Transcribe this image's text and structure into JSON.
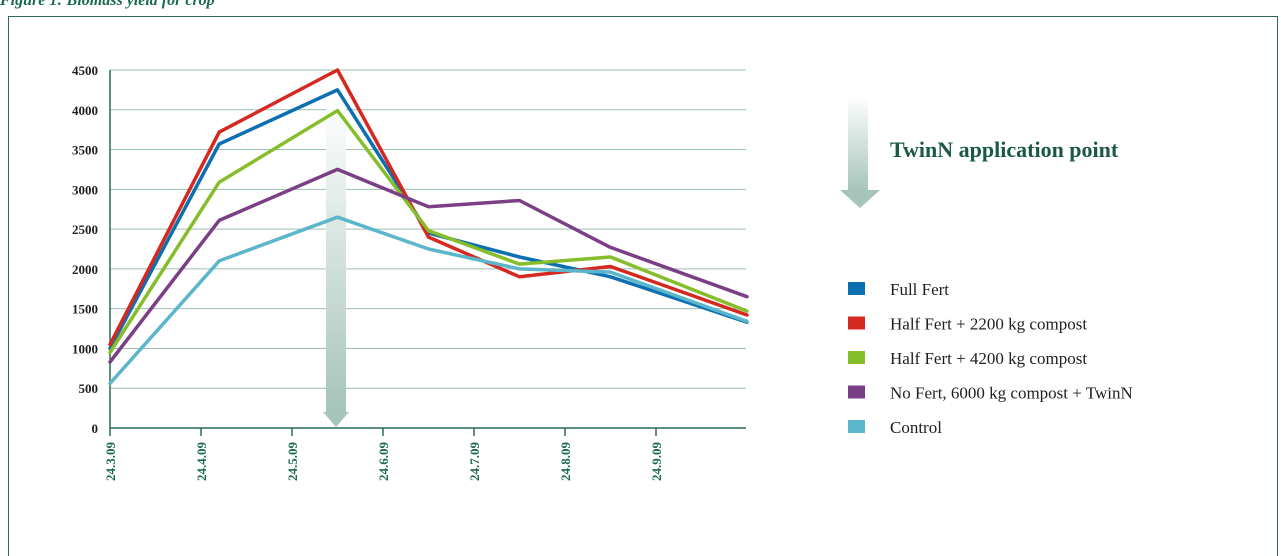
{
  "heading": "Figure 1: Biomass yield for crop",
  "annotation": {
    "text": "TwinN application point"
  },
  "colors": {
    "full_fert": "#0c6fb1",
    "half_2200": "#d5281f",
    "half_4200": "#86bd2a",
    "no_fert": "#7b3f86",
    "control": "#5bb6cc",
    "gridline": "#9bbfb3",
    "axis": "#2a6a52",
    "arrow": "#a6c4b9"
  },
  "chart_data": {
    "type": "line",
    "x": [
      "24.3.09",
      "24.4.09",
      "24.5.09",
      "24.6.09",
      "24.7.09",
      "24.8.09",
      "24.9.09"
    ],
    "ylim": [
      0,
      4500
    ],
    "yticks": [
      "0",
      "500",
      "1000",
      "1500",
      "2000",
      "2500",
      "3000",
      "3500",
      "4000",
      "4500"
    ],
    "grid": true,
    "legend_position": "right",
    "series": [
      {
        "name": "Full Fert",
        "color_key": "full_fert",
        "points": [
          [
            0,
            1000
          ],
          [
            1.2,
            3570
          ],
          [
            2.5,
            4250
          ],
          [
            3.5,
            2450
          ],
          [
            4.5,
            2150
          ],
          [
            5.5,
            1900
          ],
          [
            7,
            1330
          ]
        ]
      },
      {
        "name": "Half Fert + 2200 kg compost",
        "color_key": "half_2200",
        "points": [
          [
            0,
            1050
          ],
          [
            1.2,
            3720
          ],
          [
            2.5,
            4500
          ],
          [
            3.5,
            2400
          ],
          [
            4.5,
            1900
          ],
          [
            5.5,
            2030
          ],
          [
            7,
            1420
          ]
        ]
      },
      {
        "name": "Half Fert + 4200 kg compost",
        "color_key": "half_4200",
        "points": [
          [
            0,
            950
          ],
          [
            1.2,
            3090
          ],
          [
            2.5,
            3990
          ],
          [
            3.5,
            2480
          ],
          [
            4.5,
            2060
          ],
          [
            5.5,
            2150
          ],
          [
            7,
            1470
          ]
        ]
      },
      {
        "name": "No Fert, 6000 kg compost + TwinN",
        "color_key": "no_fert",
        "points": [
          [
            0,
            830
          ],
          [
            1.2,
            2610
          ],
          [
            2.5,
            3250
          ],
          [
            3.5,
            2780
          ],
          [
            4.5,
            2860
          ],
          [
            5.5,
            2270
          ],
          [
            7,
            1650
          ]
        ]
      },
      {
        "name": "Control",
        "color_key": "control",
        "points": [
          [
            0,
            560
          ],
          [
            1.2,
            2100
          ],
          [
            2.5,
            2650
          ],
          [
            3.5,
            2250
          ],
          [
            4.5,
            2000
          ],
          [
            5.5,
            1960
          ],
          [
            7,
            1340
          ]
        ]
      }
    ]
  }
}
